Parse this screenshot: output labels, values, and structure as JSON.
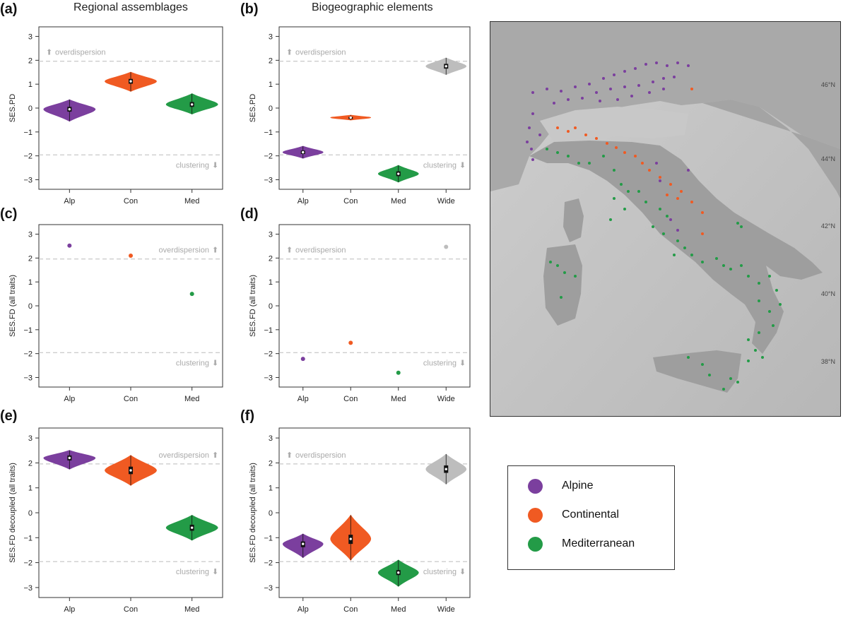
{
  "titles": {
    "col1": "Regional assemblages",
    "col2": "Biogeographic elements"
  },
  "letters": [
    "(a)",
    "(b)",
    "(c)",
    "(d)",
    "(e)",
    "(f)"
  ],
  "colors": {
    "Alp": "#7b3f9e",
    "Con": "#f05a22",
    "Med": "#239b47",
    "Wide": "#bdbdbd",
    "threshold": "#bbbbbb",
    "ref_text": "#aaaaaa"
  },
  "chart_data": [
    {
      "id": "a",
      "type": "violin",
      "ylabel": "SES.PD",
      "ylim": [
        -3.4,
        3.4
      ],
      "yticks": [
        "-3",
        "-2",
        "-1",
        "0",
        "1",
        "2",
        "3"
      ],
      "thresholds": [
        1.96,
        -1.96
      ],
      "categories": [
        "Alp",
        "Con",
        "Med"
      ],
      "series": [
        {
          "name": "Alp",
          "median": -0.05,
          "q1": -0.15,
          "q3": 0.05,
          "min": -0.55,
          "max": 0.35
        },
        {
          "name": "Con",
          "median": 1.12,
          "q1": 1.02,
          "q3": 1.22,
          "min": 0.7,
          "max": 1.5
        },
        {
          "name": "Med",
          "median": 0.15,
          "q1": 0.05,
          "q3": 0.25,
          "min": -0.25,
          "max": 0.6
        }
      ],
      "annotations": {
        "over": "overdispersion",
        "clust": "clustering"
      },
      "over_side": "left"
    },
    {
      "id": "b",
      "type": "violin",
      "ylabel": "SES.PD",
      "ylim": [
        -3.4,
        3.4
      ],
      "yticks": [
        "-3",
        "-2",
        "-1",
        "0",
        "1",
        "2",
        "3"
      ],
      "thresholds": [
        1.96,
        -1.96
      ],
      "categories": [
        "Alp",
        "Con",
        "Med",
        "Wide"
      ],
      "series": [
        {
          "name": "Alp",
          "median": -1.85,
          "q1": -1.92,
          "q3": -1.78,
          "min": -2.1,
          "max": -1.6
        },
        {
          "name": "Con",
          "median": -0.4,
          "q1": -0.43,
          "q3": -0.37,
          "min": -0.5,
          "max": -0.3
        },
        {
          "name": "Med",
          "median": -2.75,
          "q1": -2.85,
          "q3": -2.65,
          "min": -3.1,
          "max": -2.4
        },
        {
          "name": "Wide",
          "median": 1.75,
          "q1": 1.65,
          "q3": 1.85,
          "min": 1.4,
          "max": 2.1
        }
      ],
      "annotations": {
        "over": "overdispersion",
        "clust": "clustering"
      },
      "over_side": "left"
    },
    {
      "id": "c",
      "type": "scatter",
      "ylabel": "SES.FD (all traits)",
      "ylim": [
        -3.4,
        3.4
      ],
      "yticks": [
        "-3",
        "-2",
        "-1",
        "0",
        "1",
        "2",
        "3"
      ],
      "thresholds": [
        1.96,
        -1.96
      ],
      "categories": [
        "Alp",
        "Con",
        "Med"
      ],
      "values": [
        2.52,
        2.1,
        0.5
      ],
      "annotations": {
        "over": "overdispersion",
        "clust": "clustering"
      },
      "over_side": "right"
    },
    {
      "id": "d",
      "type": "scatter",
      "ylabel": "SES.FD (all traits)",
      "ylim": [
        -3.4,
        3.4
      ],
      "yticks": [
        "-3",
        "-2",
        "-1",
        "0",
        "1",
        "2",
        "3"
      ],
      "thresholds": [
        1.96,
        -1.96
      ],
      "categories": [
        "Alp",
        "Con",
        "Med",
        "Wide"
      ],
      "values": [
        -2.22,
        -1.55,
        -2.8,
        2.47
      ],
      "annotations": {
        "over": "overdispersion",
        "clust": "clustering"
      },
      "over_side": "left"
    },
    {
      "id": "e",
      "type": "violin",
      "ylabel": "SES.FD decoupled (all traits)",
      "ylim": [
        -3.4,
        3.4
      ],
      "yticks": [
        "-3",
        "-2",
        "-1",
        "0",
        "1",
        "2",
        "3"
      ],
      "thresholds": [
        1.96,
        -1.96
      ],
      "categories": [
        "Alp",
        "Con",
        "Med"
      ],
      "series": [
        {
          "name": "Alp",
          "median": 2.2,
          "q1": 2.1,
          "q3": 2.3,
          "min": 1.75,
          "max": 2.5
        },
        {
          "name": "Con",
          "median": 1.7,
          "q1": 1.55,
          "q3": 1.85,
          "min": 1.1,
          "max": 2.3
        },
        {
          "name": "Med",
          "median": -0.6,
          "q1": -0.72,
          "q3": -0.48,
          "min": -1.1,
          "max": -0.1
        }
      ],
      "annotations": {
        "over": "overdispersion",
        "clust": "clustering"
      },
      "over_side": "right"
    },
    {
      "id": "f",
      "type": "violin",
      "ylabel": "SES.FD decoupled (all traits)",
      "ylim": [
        -3.4,
        3.4
      ],
      "yticks": [
        "-3",
        "-2",
        "-1",
        "0",
        "1",
        "2",
        "3"
      ],
      "thresholds": [
        1.96,
        -1.96
      ],
      "categories": [
        "Alp",
        "Con",
        "Med",
        "Wide"
      ],
      "series": [
        {
          "name": "Alp",
          "median": -1.25,
          "q1": -1.38,
          "q3": -1.15,
          "min": -1.8,
          "max": -0.85
        },
        {
          "name": "Con",
          "median": -1.05,
          "q1": -1.25,
          "q3": -0.88,
          "min": -1.9,
          "max": -0.1
        },
        {
          "name": "Med",
          "median": -2.4,
          "q1": -2.5,
          "q3": -2.3,
          "min": -2.95,
          "max": -1.9
        },
        {
          "name": "Wide",
          "median": 1.75,
          "q1": 1.6,
          "q3": 1.9,
          "min": 1.15,
          "max": 2.35
        }
      ],
      "annotations": {
        "over": "overdispersion",
        "clust": "clustering"
      },
      "over_side": "left"
    }
  ],
  "map": {
    "lat_labels": [
      "46°N",
      "44°N",
      "42°N",
      "40°N",
      "38°N"
    ],
    "alpine_sites": [
      [
        60,
        100
      ],
      [
        80,
        95
      ],
      [
        100,
        98
      ],
      [
        120,
        92
      ],
      [
        140,
        88
      ],
      [
        160,
        80
      ],
      [
        175,
        75
      ],
      [
        190,
        70
      ],
      [
        205,
        66
      ],
      [
        220,
        60
      ],
      [
        235,
        58
      ],
      [
        250,
        62
      ],
      [
        265,
        58
      ],
      [
        280,
        62
      ],
      [
        150,
        100
      ],
      [
        170,
        95
      ],
      [
        190,
        92
      ],
      [
        210,
        90
      ],
      [
        230,
        85
      ],
      [
        245,
        80
      ],
      [
        260,
        78
      ],
      [
        90,
        115
      ],
      [
        110,
        110
      ],
      [
        130,
        108
      ],
      [
        155,
        112
      ],
      [
        180,
        110
      ],
      [
        200,
        105
      ],
      [
        225,
        100
      ],
      [
        245,
        95
      ],
      [
        60,
        130
      ],
      [
        55,
        150
      ],
      [
        52,
        170
      ],
      [
        58,
        180
      ],
      [
        60,
        195
      ],
      [
        70,
        160
      ],
      [
        235,
        200
      ],
      [
        240,
        225
      ],
      [
        255,
        280
      ],
      [
        265,
        295
      ],
      [
        280,
        210
      ]
    ],
    "continental_sites": [
      [
        285,
        95
      ],
      [
        95,
        150
      ],
      [
        110,
        155
      ],
      [
        120,
        150
      ],
      [
        135,
        160
      ],
      [
        150,
        165
      ],
      [
        165,
        172
      ],
      [
        178,
        178
      ],
      [
        190,
        185
      ],
      [
        205,
        190
      ],
      [
        215,
        200
      ],
      [
        225,
        210
      ],
      [
        240,
        220
      ],
      [
        255,
        230
      ],
      [
        270,
        240
      ],
      [
        285,
        255
      ],
      [
        300,
        270
      ],
      [
        300,
        300
      ],
      [
        265,
        250
      ],
      [
        250,
        245
      ]
    ],
    "mediterranean_sites": [
      [
        80,
        180
      ],
      [
        95,
        185
      ],
      [
        110,
        190
      ],
      [
        125,
        200
      ],
      [
        140,
        200
      ],
      [
        160,
        190
      ],
      [
        175,
        210
      ],
      [
        185,
        230
      ],
      [
        195,
        240
      ],
      [
        210,
        240
      ],
      [
        220,
        255
      ],
      [
        240,
        265
      ],
      [
        250,
        275
      ],
      [
        230,
        290
      ],
      [
        245,
        300
      ],
      [
        265,
        310
      ],
      [
        275,
        320
      ],
      [
        260,
        330
      ],
      [
        285,
        330
      ],
      [
        300,
        340
      ],
      [
        320,
        335
      ],
      [
        330,
        345
      ],
      [
        340,
        350
      ],
      [
        355,
        345
      ],
      [
        365,
        360
      ],
      [
        380,
        370
      ],
      [
        395,
        360
      ],
      [
        405,
        380
      ],
      [
        410,
        400
      ],
      [
        380,
        395
      ],
      [
        395,
        410
      ],
      [
        400,
        430
      ],
      [
        380,
        440
      ],
      [
        365,
        450
      ],
      [
        375,
        465
      ],
      [
        385,
        475
      ],
      [
        365,
        480
      ],
      [
        85,
        340
      ],
      [
        95,
        345
      ],
      [
        105,
        355
      ],
      [
        120,
        360
      ],
      [
        100,
        390
      ],
      [
        280,
        475
      ],
      [
        300,
        485
      ],
      [
        310,
        500
      ],
      [
        330,
        520
      ],
      [
        340,
        505
      ],
      [
        350,
        510
      ],
      [
        355,
        290
      ],
      [
        350,
        285
      ],
      [
        175,
        250
      ],
      [
        190,
        265
      ],
      [
        170,
        280
      ]
    ]
  },
  "legend": {
    "items": [
      {
        "label": "Alpine"
      },
      {
        "label": "Continental"
      },
      {
        "label": "Mediterranean"
      }
    ]
  }
}
